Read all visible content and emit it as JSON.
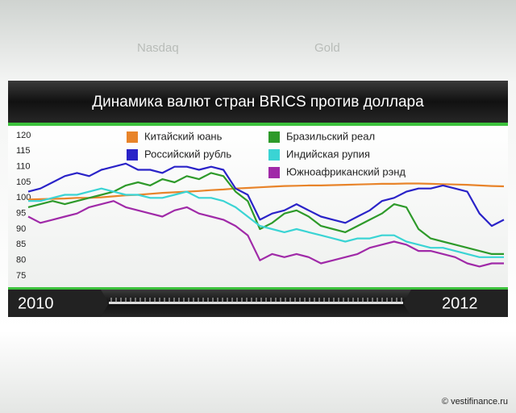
{
  "chart_data": {
    "type": "line",
    "title": "Динамика валют стран BRICS против доллара",
    "background_labels": [
      "Nasdaq",
      "Gold"
    ],
    "watermark": "© vestifinance.ru",
    "categories": [
      "2010",
      null,
      null,
      null,
      null,
      null,
      null,
      null,
      null,
      null,
      null,
      null,
      null,
      null,
      null,
      null,
      null,
      null,
      null,
      null,
      null,
      null,
      null,
      null,
      null,
      null,
      null,
      null,
      null,
      null,
      null,
      null,
      null,
      null,
      null,
      null,
      null,
      null,
      null,
      "2012"
    ],
    "ylim": [
      75,
      120
    ],
    "yticks": [
      75,
      80,
      85,
      90,
      95,
      100,
      105,
      110,
      115,
      120
    ],
    "series": [
      {
        "name": "Китайский юань",
        "color": "#e8842a",
        "values": [
          99.5,
          99.6,
          99.7,
          99.8,
          100,
          100,
          100.2,
          100.5,
          100.8,
          101,
          101.3,
          101.6,
          101.8,
          102,
          102.2,
          102.5,
          102.7,
          103,
          103.2,
          103.4,
          103.6,
          103.8,
          103.9,
          104,
          104,
          104.1,
          104.2,
          104.3,
          104.4,
          104.5,
          104.5,
          104.6,
          104.6,
          104.5,
          104.4,
          104.3,
          104.2,
          104,
          103.8,
          103.7
        ]
      },
      {
        "name": "Российский рубль",
        "color": "#2a23c8",
        "values": [
          102,
          103,
          105,
          107,
          108,
          107,
          109,
          110,
          111,
          109,
          109,
          108,
          110,
          110,
          109,
          110,
          109,
          103,
          101,
          93,
          95,
          96,
          98,
          96,
          94,
          93,
          92,
          94,
          96,
          99,
          100,
          102,
          103,
          103,
          104,
          103,
          102,
          95,
          91,
          93
        ]
      },
      {
        "name": "Бразильский реал",
        "color": "#2e9a2a",
        "values": [
          97,
          98,
          99,
          98,
          99,
          100,
          101,
          102,
          104,
          105,
          104,
          106,
          105,
          107,
          106,
          108,
          107,
          102,
          99,
          90,
          92,
          95,
          96,
          94,
          91,
          90,
          89,
          91,
          93,
          95,
          98,
          97,
          90,
          87,
          86,
          85,
          84,
          83,
          82,
          82
        ]
      },
      {
        "name": "Индийская рупия",
        "color": "#3ad4d4",
        "values": [
          99,
          99,
          100,
          101,
          101,
          102,
          103,
          102,
          101,
          101,
          100,
          100,
          101,
          102,
          100,
          100,
          99,
          97,
          94,
          91,
          90,
          89,
          90,
          89,
          88,
          87,
          86,
          87,
          87,
          88,
          88,
          86,
          85,
          84,
          84,
          83,
          82,
          81,
          81,
          81
        ]
      },
      {
        "name": "Южноафриканский рэнд",
        "color": "#a02aa8",
        "values": [
          94,
          92,
          93,
          94,
          95,
          97,
          98,
          99,
          97,
          96,
          95,
          94,
          96,
          97,
          95,
          94,
          93,
          91,
          88,
          80,
          82,
          81,
          82,
          81,
          79,
          80,
          81,
          82,
          84,
          85,
          86,
          85,
          83,
          83,
          82,
          81,
          79,
          78,
          79,
          79
        ]
      }
    ]
  }
}
